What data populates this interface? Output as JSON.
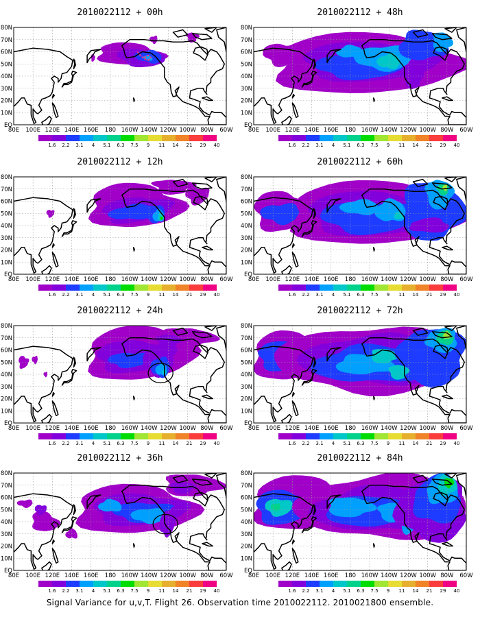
{
  "figure": {
    "caption": "Signal Variance for u,v,T. Flight 26. Observation time 2010022112. 2010021800 ensemble.",
    "y_tick_labels": [
      "80N",
      "70N",
      "60N",
      "50N",
      "40N",
      "30N",
      "20N",
      "10N",
      "EQ"
    ],
    "x_tick_labels": [
      "80E",
      "100E",
      "120E",
      "140E",
      "160E",
      "180",
      "160W",
      "140W",
      "120W",
      "100W",
      "80W",
      "60W"
    ],
    "colorbar": {
      "labels": [
        "1.6",
        "2.2",
        "3.1",
        "4",
        "5.1",
        "6.3",
        "7.5",
        "9",
        "11",
        "14",
        "21",
        "29",
        "40"
      ],
      "colors": [
        "#a000c8",
        "#8200dc",
        "#1e3cff",
        "#00a0ff",
        "#00c8c8",
        "#00d28c",
        "#00dc00",
        "#a0e632",
        "#e6dc32",
        "#e6af2d",
        "#f08228",
        "#fa3c3c",
        "#f00082"
      ]
    },
    "panels": [
      {
        "title": "2010022112 + 00h",
        "lead": "00h",
        "circle": false
      },
      {
        "title": "2010022112 + 12h",
        "lead": "12h",
        "circle": false
      },
      {
        "title": "2010022112 + 24h",
        "lead": "24h",
        "circle": true
      },
      {
        "title": "2010022112 + 36h",
        "lead": "36h",
        "circle": true
      },
      {
        "title": "2010022112 + 48h",
        "lead": "48h",
        "circle": false
      },
      {
        "title": "2010022112 + 60h",
        "lead": "60h",
        "circle": false
      },
      {
        "title": "2010022112 + 72h",
        "lead": "72h",
        "circle": false
      },
      {
        "title": "2010022112 + 84h",
        "lead": "84h",
        "circle": false
      }
    ]
  }
}
